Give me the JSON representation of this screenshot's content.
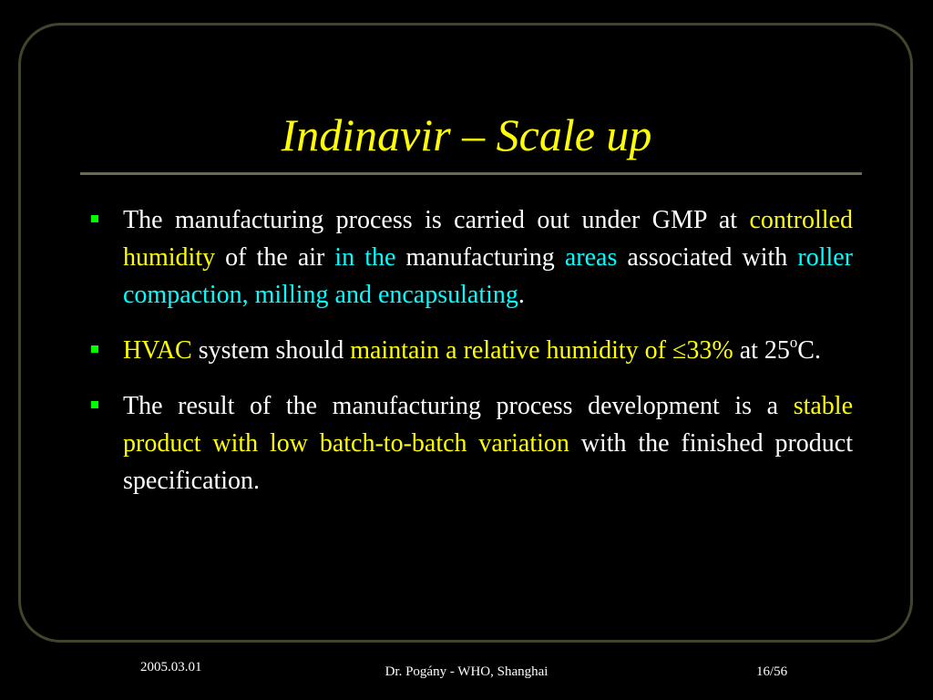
{
  "slide": {
    "title": "Indinavir – Scale up",
    "bullets": [
      {
        "segments": [
          {
            "text": "The manufacturing process is carried out under GMP at ",
            "color": "white"
          },
          {
            "text": "controlled humidity",
            "color": "yellow"
          },
          {
            "text": " of the air ",
            "color": "white"
          },
          {
            "text": "in the",
            "color": "cyan"
          },
          {
            "text": " manufacturing ",
            "color": "white"
          },
          {
            "text": "areas",
            "color": "cyan"
          },
          {
            "text": " associated with ",
            "color": "white"
          },
          {
            "text": "roller compaction, milling and encapsulating",
            "color": "cyan"
          },
          {
            "text": ".",
            "color": "white"
          }
        ]
      },
      {
        "segments": [
          {
            "text": "HVAC",
            "color": "yellow"
          },
          {
            "text": " system should ",
            "color": "white"
          },
          {
            "text": "maintain a relative humidity of ≤33%",
            "color": "yellow"
          },
          {
            "text": " at 25",
            "color": "white"
          },
          {
            "text": "o",
            "color": "white",
            "sup": true
          },
          {
            "text": "C.",
            "color": "white"
          }
        ]
      },
      {
        "segments": [
          {
            "text": "The result of the manufacturing process development is a ",
            "color": "white"
          },
          {
            "text": "stable product with low batch-to-batch variation",
            "color": "yellow"
          },
          {
            "text": " with the finished product specification.",
            "color": "white"
          }
        ]
      }
    ]
  },
  "footer": {
    "date": "2005.03.01",
    "center": "Dr. Pogány - WHO, Shanghai",
    "page": "16/56"
  },
  "colors": {
    "background": "#000000",
    "title": "#ffff00",
    "highlight_yellow": "#ffff00",
    "highlight_cyan": "#00ffff",
    "bullet_marker": "#00ff00",
    "frame": "#44442a"
  }
}
